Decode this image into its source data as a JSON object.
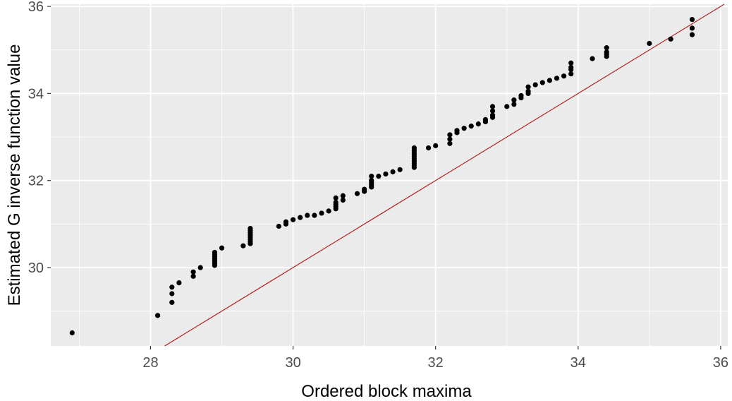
{
  "chart_data": {
    "type": "scatter",
    "title": "",
    "xlabel": "Ordered block maxima",
    "ylabel": "Estimated G inverse function value",
    "xlim": [
      26.6,
      36.1
    ],
    "ylim": [
      28.2,
      36.05
    ],
    "x_ticks": [
      28,
      30,
      32,
      34,
      36
    ],
    "y_ticks": [
      30,
      32,
      34,
      36
    ],
    "grid": true,
    "legend": "none",
    "colors": {
      "panel_background": "#ebebeb",
      "grid": "#ffffff",
      "points": "#000000",
      "reference_line": "#b22222"
    },
    "reference_line": {
      "type": "identity",
      "slope": 1,
      "intercept": 0
    },
    "series": [
      {
        "x": [
          26.9,
          28.1,
          28.3,
          28.3,
          28.3,
          28.4,
          28.6,
          28.6,
          28.7,
          28.9,
          28.9,
          28.9,
          28.9,
          28.9,
          28.9,
          28.9,
          29.0,
          29.3,
          29.4,
          29.4,
          29.4,
          29.4,
          29.4,
          29.4,
          29.4,
          29.4,
          29.8,
          29.9,
          29.9,
          30.0,
          30.1,
          30.2,
          30.3,
          30.4,
          30.5,
          30.6,
          30.6,
          30.6,
          30.6,
          30.6,
          30.7,
          30.7,
          30.9,
          31.0,
          31.0,
          31.1,
          31.1,
          31.1,
          31.1,
          31.1,
          31.2,
          31.3,
          31.4,
          31.5,
          31.7,
          31.7,
          31.7,
          31.7,
          31.7,
          31.7,
          31.7,
          31.7,
          31.7,
          31.7,
          31.9,
          32.0,
          32.2,
          32.2,
          32.2,
          32.3,
          32.3,
          32.4,
          32.5,
          32.6,
          32.7,
          32.7,
          32.8,
          32.8,
          32.8,
          32.8,
          33.0,
          33.1,
          33.1,
          33.2,
          33.2,
          33.3,
          33.3,
          33.3,
          33.4,
          33.5,
          33.6,
          33.7,
          33.8,
          33.9,
          33.9,
          33.9,
          33.9,
          34.2,
          34.4,
          34.4,
          34.4,
          34.4,
          35.0,
          35.3,
          35.6,
          35.6,
          35.6
        ],
        "y": [
          28.5,
          28.9,
          29.2,
          29.4,
          29.55,
          29.65,
          29.8,
          29.9,
          30.0,
          30.05,
          30.1,
          30.15,
          30.2,
          30.25,
          30.3,
          30.35,
          30.45,
          30.5,
          30.55,
          30.6,
          30.65,
          30.7,
          30.75,
          30.8,
          30.85,
          30.9,
          30.95,
          31.0,
          31.05,
          31.1,
          31.15,
          31.2,
          31.2,
          31.25,
          31.3,
          31.35,
          31.4,
          31.45,
          31.5,
          31.6,
          31.55,
          31.65,
          31.7,
          31.75,
          31.8,
          31.85,
          31.9,
          31.95,
          32.0,
          32.1,
          32.1,
          32.15,
          32.2,
          32.25,
          32.3,
          32.35,
          32.4,
          32.45,
          32.5,
          32.55,
          32.6,
          32.65,
          32.7,
          32.75,
          32.75,
          32.8,
          32.85,
          32.95,
          33.05,
          33.1,
          33.15,
          33.2,
          33.25,
          33.3,
          33.35,
          33.4,
          33.45,
          33.5,
          33.6,
          33.7,
          33.7,
          33.75,
          33.85,
          33.9,
          33.95,
          34.0,
          34.05,
          34.15,
          34.2,
          34.25,
          34.3,
          34.35,
          34.4,
          34.45,
          34.55,
          34.6,
          34.7,
          34.8,
          34.85,
          34.9,
          34.95,
          35.05,
          35.15,
          35.25,
          35.35,
          35.5,
          35.7
        ]
      }
    ]
  }
}
